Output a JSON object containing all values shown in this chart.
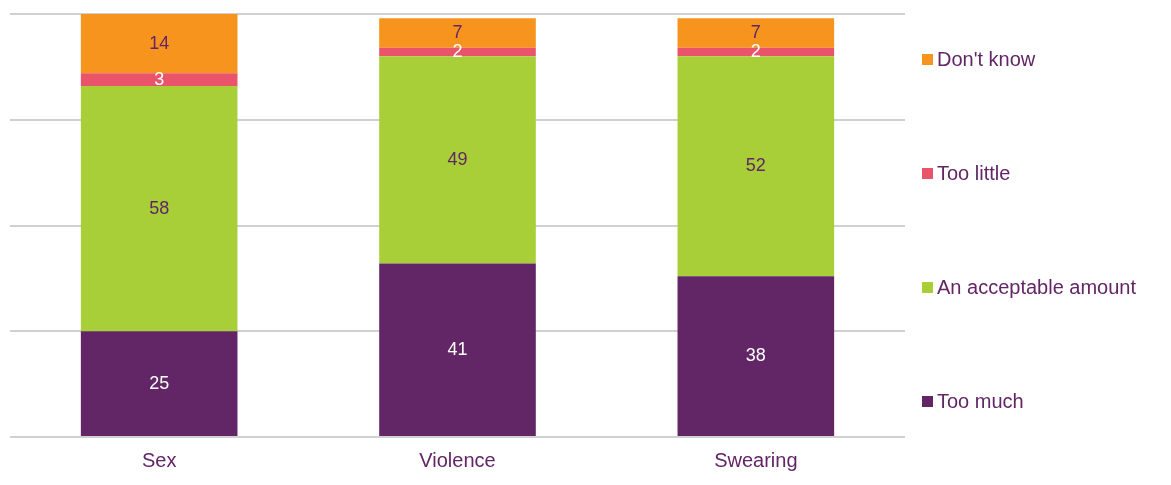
{
  "chart_data": {
    "type": "bar",
    "stacked": true,
    "categories": [
      "Sex",
      "Violence",
      "Swearing"
    ],
    "series": [
      {
        "name": "Too much",
        "color": "#622565",
        "values": [
          25,
          41,
          38
        ]
      },
      {
        "name": "An acceptable amount",
        "color": "#a8cf38",
        "values": [
          58,
          49,
          52
        ]
      },
      {
        "name": "Too little",
        "color": "#e9546b",
        "values": [
          3,
          2,
          2
        ]
      },
      {
        "name": "Don't know",
        "color": "#f7941d",
        "values": [
          14,
          7,
          7
        ]
      }
    ],
    "ylim": [
      0,
      100
    ],
    "yticks": [
      {
        "value": 0,
        "label": null
      },
      {
        "value": 25,
        "label": null
      },
      {
        "value": 50,
        "label": null
      },
      {
        "value": 75,
        "label": null
      },
      {
        "value": 100,
        "label": null
      }
    ],
    "tick_labels": "x",
    "grid": "y",
    "legend": "right",
    "data_labels": true
  }
}
